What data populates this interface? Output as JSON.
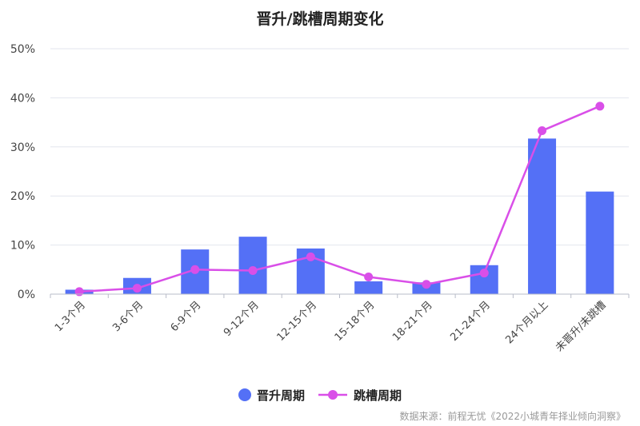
{
  "chart_data": {
    "type": "bar",
    "title": "晋升/跳槽周期变化",
    "source": "数据来源：前程无忧《2022小城青年择业倾向洞察》",
    "categories": [
      "1-3个月",
      "3-6个月",
      "6-9个月",
      "9-12个月",
      "12-15个月",
      "15-18个月",
      "18-21个月",
      "21-24个月",
      "24个月以上",
      "未晋升/未跳槽"
    ],
    "yticks": [
      "0%",
      "10%",
      "20%",
      "30%",
      "40%",
      "50%"
    ],
    "ylim": [
      0,
      50
    ],
    "grid": true,
    "legend_position": "bottom",
    "series": [
      {
        "name": "晋升周期",
        "type": "bar",
        "color": "#5470f6",
        "values": [
          0.9,
          3.3,
          9.1,
          11.7,
          9.3,
          2.6,
          2.4,
          5.9,
          31.7,
          20.9
        ]
      },
      {
        "name": "跳槽周期",
        "type": "line",
        "color": "#d94fe8",
        "values": [
          0.5,
          1.2,
          5.0,
          4.8,
          7.6,
          3.5,
          2.0,
          4.3,
          33.3,
          38.3
        ]
      }
    ]
  }
}
